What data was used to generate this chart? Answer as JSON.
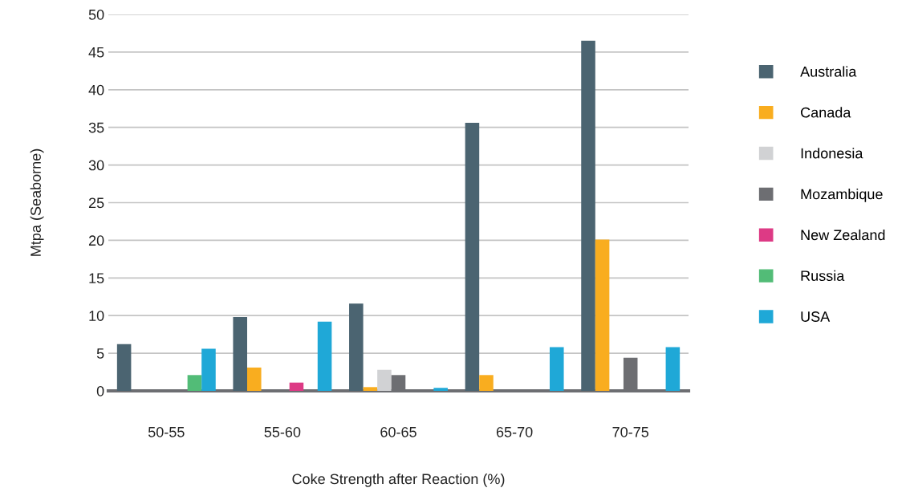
{
  "chart_data": {
    "type": "bar",
    "xlabel": "Coke Strength after Reaction (%)",
    "ylabel": "Mtpa (Seaborne)",
    "categories": [
      "50-55",
      "55-60",
      "60-65",
      "65-70",
      "70-75"
    ],
    "series": [
      {
        "name": "Australia",
        "color": "#4b6471",
        "values": [
          6.2,
          9.8,
          11.6,
          35.6,
          46.5
        ]
      },
      {
        "name": "Canada",
        "color": "#f9ad1f",
        "values": [
          0,
          3.1,
          0.5,
          2.1,
          20.1
        ]
      },
      {
        "name": "Indonesia",
        "color": "#d1d2d4",
        "values": [
          0,
          0,
          2.8,
          0,
          0
        ]
      },
      {
        "name": "Mozambique",
        "color": "#6d6e72",
        "values": [
          0,
          0,
          2.1,
          0,
          4.4
        ]
      },
      {
        "name": "New Zealand",
        "color": "#dd3a85",
        "values": [
          0,
          1.1,
          0,
          0,
          0
        ]
      },
      {
        "name": "Russia",
        "color": "#52bc77",
        "values": [
          2.1,
          0,
          0,
          0,
          0
        ]
      },
      {
        "name": "USA",
        "color": "#1fa8d7",
        "values": [
          5.6,
          9.2,
          0.4,
          5.8,
          5.8
        ]
      }
    ],
    "ylim": [
      0,
      50
    ],
    "yticks": [
      0,
      5,
      10,
      15,
      20,
      25,
      30,
      35,
      40,
      45,
      50
    ],
    "grid": "y",
    "legend": "right"
  }
}
